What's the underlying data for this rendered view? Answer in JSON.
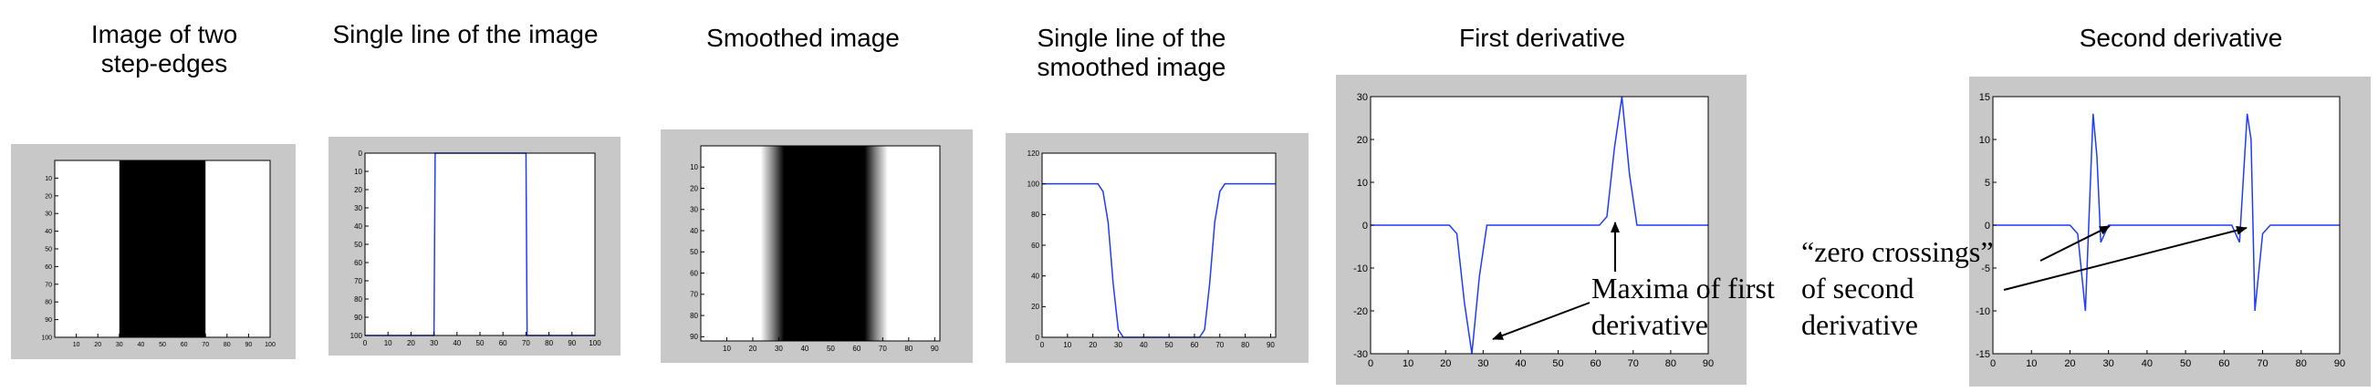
{
  "panels": {
    "p1": {
      "title": "Image of two step-edges"
    },
    "p2": {
      "title": "Single line of the image"
    },
    "p3": {
      "title": "Smoothed image"
    },
    "p4": {
      "title": "Single line of the smoothed image"
    },
    "p5": {
      "title": "First derivative"
    },
    "p6": {
      "title": "Second derivative"
    }
  },
  "annotations": {
    "maxima": [
      "Maxima of first",
      "derivative"
    ],
    "zero": [
      "“zero crossings”",
      "of second",
      "derivative"
    ]
  },
  "chart_data": [
    {
      "id": "p1",
      "type": "heatmap",
      "description_values": {
        "dark_from": 30,
        "dark_to": 70
      },
      "xlim": [
        0,
        100
      ],
      "ylim": [
        0,
        100
      ],
      "xticks": [
        "10",
        "20",
        "30",
        "40",
        "50",
        "60",
        "70",
        "80",
        "90",
        "100"
      ],
      "yticks": [
        "10",
        "20",
        "30",
        "40",
        "50",
        "60",
        "70",
        "80",
        "90",
        "100"
      ]
    },
    {
      "id": "p2",
      "type": "line",
      "x": [
        0,
        30,
        30.5,
        70,
        70.5,
        100
      ],
      "y": [
        100,
        100,
        0,
        0,
        100,
        100
      ],
      "xlim": [
        0,
        100
      ],
      "ylim": [
        0,
        100
      ],
      "xticks": [
        "0",
        "10",
        "20",
        "30",
        "40",
        "50",
        "60",
        "70",
        "80",
        "90",
        "100"
      ],
      "yticks": [
        "0",
        "10",
        "20",
        "30",
        "40",
        "50",
        "60",
        "70",
        "80",
        "90",
        "100"
      ]
    },
    {
      "id": "p3",
      "type": "heatmap",
      "description_values": {
        "ramp1": [
          23,
          32
        ],
        "ramp2": [
          63,
          72
        ]
      },
      "xlim": [
        0,
        92
      ],
      "ylim": [
        0,
        92
      ],
      "xticks": [
        "10",
        "20",
        "30",
        "40",
        "50",
        "60",
        "70",
        "80",
        "90"
      ],
      "yticks": [
        "10",
        "20",
        "30",
        "40",
        "50",
        "60",
        "70",
        "80",
        "90"
      ]
    },
    {
      "id": "p4",
      "type": "line",
      "x": [
        0,
        22,
        24,
        26,
        28,
        30,
        32,
        62,
        64,
        66,
        68,
        70,
        72,
        92
      ],
      "y": [
        100,
        100,
        95,
        75,
        35,
        5,
        0,
        0,
        5,
        35,
        75,
        95,
        100,
        100
      ],
      "xlim": [
        0,
        92
      ],
      "ylim": [
        0,
        120
      ],
      "xticks": [
        "0",
        "10",
        "20",
        "30",
        "40",
        "50",
        "60",
        "70",
        "80",
        "90"
      ],
      "yticks": [
        "0",
        "20",
        "40",
        "60",
        "80",
        "100",
        "120"
      ]
    },
    {
      "id": "p5",
      "type": "line",
      "x": [
        0,
        21,
        23,
        25,
        27,
        29,
        31,
        61,
        63,
        65,
        67,
        69,
        71,
        90
      ],
      "y": [
        0,
        0,
        -2,
        -18,
        -30,
        -12,
        0,
        0,
        2,
        18,
        30,
        12,
        0,
        0
      ],
      "xlim": [
        0,
        90
      ],
      "ylim": [
        -30,
        30
      ],
      "xticks": [
        "0",
        "10",
        "20",
        "30",
        "40",
        "50",
        "60",
        "70",
        "80",
        "90"
      ],
      "yticks": [
        "-30",
        "-20",
        "-10",
        "0",
        "10",
        "20",
        "30"
      ]
    },
    {
      "id": "p6",
      "type": "line",
      "x": [
        0,
        20,
        22,
        24,
        26,
        27,
        28,
        30,
        32,
        60,
        62,
        64,
        66,
        67,
        68,
        70,
        72,
        90
      ],
      "y": [
        0,
        0,
        -1,
        -10,
        13,
        8,
        -2,
        0,
        0,
        0,
        0,
        -2,
        13,
        10,
        -10,
        -1,
        0,
        0
      ],
      "xlim": [
        0,
        90
      ],
      "ylim": [
        -15,
        15
      ],
      "xticks": [
        "0",
        "10",
        "20",
        "30",
        "40",
        "50",
        "60",
        "70",
        "80",
        "90"
      ],
      "yticks": [
        "-15",
        "-10",
        "-5",
        "0",
        "5",
        "10",
        "15"
      ]
    }
  ]
}
